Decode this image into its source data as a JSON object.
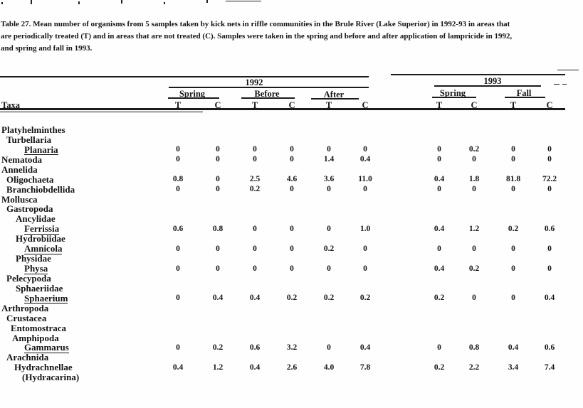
{
  "caption": {
    "lines": [
      "Table 27.  Mean number of organisms from 5 samples taken by kick nets in riffle communities in the Brule River (Lake Superior) in 1992-93 in areas that",
      "are periodically treated (T) and in areas that are not treated (C).  Samples were taken in the spring and before and after application of lampricide in 1992,",
      "and spring and fall in 1993."
    ]
  },
  "table": {
    "taxa_header": "Taxa",
    "year_groups": [
      {
        "label": "1992",
        "seasons": [
          {
            "label": "Spring"
          },
          {
            "label": "Before"
          },
          {
            "label": "After"
          }
        ]
      },
      {
        "label": "1993",
        "seasons": [
          {
            "label": "Spring"
          },
          {
            "label": "Fall"
          }
        ]
      }
    ],
    "col_labels": [
      "T",
      "C",
      "T",
      "C",
      "T",
      "C",
      "T",
      "C",
      "T",
      "C"
    ],
    "rows": [
      {
        "name": "Platyhelminthes",
        "indent": 0,
        "underline": false,
        "values": null
      },
      {
        "name": "Turbellaria",
        "indent": 1,
        "underline": false,
        "values": null
      },
      {
        "name": "Planaria",
        "indent": 3,
        "underline": true,
        "values": [
          "0",
          "0",
          "0",
          "0",
          "0",
          "0",
          "0",
          "0.2",
          "0",
          "0"
        ]
      },
      {
        "name": "Nematoda",
        "indent": 0,
        "underline": false,
        "values": [
          "0",
          "0",
          "0",
          "0",
          "1.4",
          "0.4",
          "0",
          "0",
          "0",
          "0"
        ]
      },
      {
        "name": "Annelida",
        "indent": 0,
        "underline": false,
        "values": null
      },
      {
        "name": "Oligochaeta",
        "indent": 1,
        "underline": false,
        "values": [
          "0.8",
          "0",
          "2.5",
          "4.6",
          "3.6",
          "11.0",
          "0.4",
          "1.8",
          "81.8",
          "72.2"
        ]
      },
      {
        "name": "Branchiobdellida",
        "indent": 1,
        "underline": false,
        "values": [
          "0",
          "0",
          "0.2",
          "0",
          "0",
          "0",
          "0",
          "0",
          "0",
          "0"
        ]
      },
      {
        "name": "Mollusca",
        "indent": 0,
        "underline": false,
        "values": null
      },
      {
        "name": "Gastropoda",
        "indent": 1,
        "underline": false,
        "values": null
      },
      {
        "name": "Ancylidae",
        "indent": 2,
        "underline": false,
        "values": null
      },
      {
        "name": "Ferrissia",
        "indent": 3,
        "underline": true,
        "values": [
          "0.6",
          "0.8",
          "0",
          "0",
          "0",
          "1.0",
          "0.4",
          "1.2",
          "0.2",
          "0.6"
        ]
      },
      {
        "name": "Hydrobiidae",
        "indent": 2,
        "underline": false,
        "values": null
      },
      {
        "name": "Amnicola",
        "indent": 3,
        "underline": true,
        "values": [
          "0",
          "0",
          "0",
          "0",
          "0.2",
          "0",
          "0",
          "0",
          "0",
          "0"
        ]
      },
      {
        "name": "Physidae",
        "indent": 2,
        "underline": false,
        "values": null
      },
      {
        "name": "Physa",
        "indent": 3,
        "underline": true,
        "values": [
          "0",
          "0",
          "0",
          "0",
          "0",
          "0",
          "0.4",
          "0.2",
          "0",
          "0"
        ]
      },
      {
        "name": "Pelecypoda",
        "indent": 1,
        "underline": false,
        "values": null
      },
      {
        "name": "Sphaeriidae",
        "indent": 2,
        "underline": false,
        "values": null
      },
      {
        "name": "Sphaerium",
        "indent": 3,
        "underline": true,
        "values": [
          "0",
          "0.4",
          "0.4",
          "0.2",
          "0.2",
          "0.2",
          "0.2",
          "0",
          "0",
          "0.4"
        ]
      },
      {
        "name": "Arthropoda",
        "indent": 0,
        "underline": false,
        "values": null
      },
      {
        "name": "Crustacea",
        "indent": 1,
        "underline": false,
        "values": null
      },
      {
        "name": "Entomostraca",
        "indent": 2,
        "underline": false,
        "values": null
      },
      {
        "name": "Amphipoda",
        "indent": 2,
        "underline": false,
        "values": null
      },
      {
        "name": "Gammarus",
        "indent": 3,
        "underline": true,
        "values": [
          "0",
          "0.2",
          "0.6",
          "3.2",
          "0",
          "0.4",
          "0",
          "0.8",
          "0.4",
          "0.6"
        ]
      },
      {
        "name": "Arachnida",
        "indent": 1,
        "underline": false,
        "values": null
      },
      {
        "name": "Hydrachnellae",
        "indent": 2,
        "underline": false,
        "values": [
          "0.4",
          "1.2",
          "0.4",
          "2.6",
          "4.0",
          "7.8",
          "0.2",
          "2.2",
          "3.4",
          "7.4"
        ]
      },
      {
        "name": "(Hydracarina)",
        "indent": 3,
        "underline": false,
        "values": null
      }
    ]
  }
}
